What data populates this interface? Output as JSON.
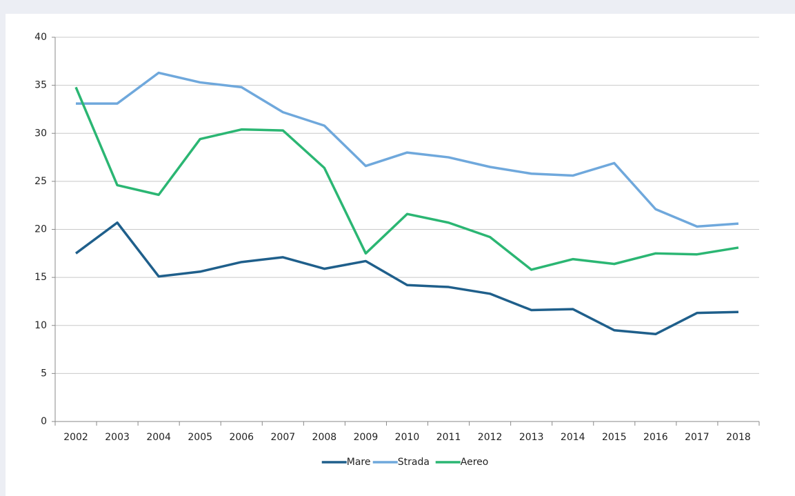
{
  "chart_data": {
    "type": "line",
    "categories": [
      "2002",
      "2003",
      "2004",
      "2005",
      "2006",
      "2007",
      "2008",
      "2009",
      "2010",
      "2011",
      "2012",
      "2013",
      "2014",
      "2015",
      "2016",
      "2017",
      "2018"
    ],
    "series": [
      {
        "name": "Mare",
        "color": "#1f5f8b",
        "values": [
          17.5,
          20.7,
          15.1,
          15.6,
          16.6,
          17.1,
          15.9,
          16.7,
          14.2,
          14.0,
          13.3,
          11.6,
          11.7,
          9.5,
          9.1,
          11.3,
          11.4
        ]
      },
      {
        "name": "Strada",
        "color": "#6fa8dc",
        "values": [
          33.1,
          33.1,
          36.3,
          35.3,
          34.8,
          32.2,
          30.8,
          26.6,
          28.0,
          27.5,
          26.5,
          25.8,
          25.6,
          26.9,
          22.1,
          20.3,
          20.6
        ]
      },
      {
        "name": "Aereo",
        "color": "#2bb673",
        "values": [
          34.8,
          24.6,
          23.6,
          29.4,
          30.4,
          30.3,
          26.4,
          17.5,
          21.6,
          20.7,
          19.2,
          15.8,
          16.9,
          16.4,
          17.5,
          17.4,
          18.1
        ]
      }
    ],
    "ylim": [
      0,
      40
    ],
    "yticks": [
      0,
      5,
      10,
      15,
      20,
      25,
      30,
      35,
      40
    ],
    "grid": true,
    "legend": "bottom"
  }
}
